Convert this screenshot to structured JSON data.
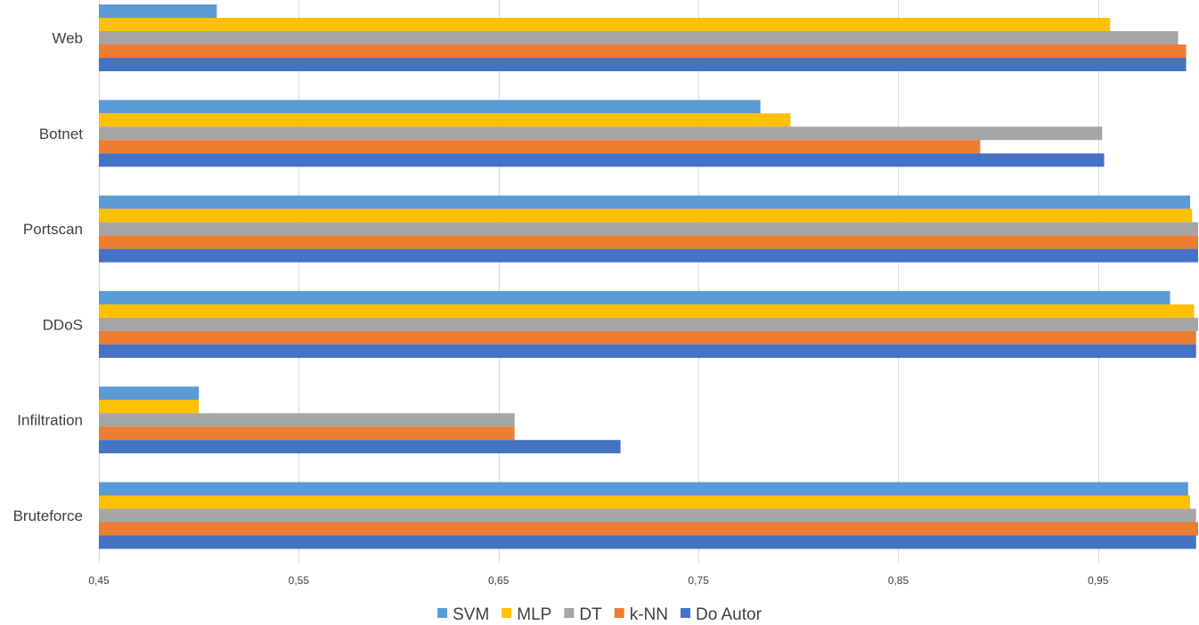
{
  "chart_data": {
    "type": "bar",
    "orientation": "horizontal",
    "title": "",
    "xlabel": "",
    "ylabel": "",
    "xlim": [
      0.45,
      1.0
    ],
    "xticks": [
      0.45,
      0.55,
      0.65,
      0.75,
      0.85,
      0.95
    ],
    "xtick_labels": [
      "0,45",
      "0,55",
      "0,65",
      "0,75",
      "0,85",
      "0,95"
    ],
    "categories": [
      "Web",
      "Botnet",
      "Portscan",
      "DDoS",
      "Infiltration",
      "Bruteforce"
    ],
    "series": [
      {
        "name": "SVM",
        "color": "#5b9bd5",
        "values": [
          0.509,
          0.781,
          0.996,
          0.986,
          0.5,
          0.995
        ]
      },
      {
        "name": "MLP",
        "color": "#ffc000",
        "values": [
          0.956,
          0.796,
          0.997,
          0.998,
          0.5,
          0.996
        ]
      },
      {
        "name": "DT",
        "color": "#a5a5a5",
        "values": [
          0.99,
          0.952,
          1.0,
          1.0,
          0.658,
          0.999
        ]
      },
      {
        "name": "k-NN",
        "color": "#ed7d31",
        "values": [
          0.994,
          0.891,
          1.0,
          0.999,
          0.658,
          1.0
        ]
      },
      {
        "name": "Do Autor",
        "color": "#4472c4",
        "values": [
          0.994,
          0.953,
          1.0,
          0.999,
          0.711,
          0.999
        ]
      }
    ],
    "grid": true,
    "legend": "bottom"
  }
}
